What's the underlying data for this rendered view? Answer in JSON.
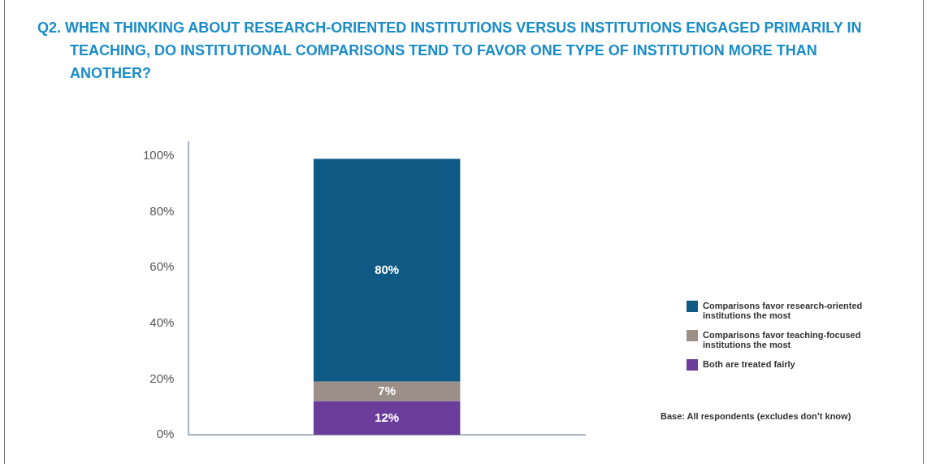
{
  "chart_data": {
    "type": "bar",
    "stacked": true,
    "title": "Q2. WHEN THINKING ABOUT RESEARCH-ORIENTED INSTITUTIONS VERSUS INSTITUTIONS ENGAGED PRIMARILY IN TEACHING, DO INSTITUTIONAL COMPARISONS TEND TO FAVOR ONE TYPE OF INSTITUTION MORE THAN ANOTHER?",
    "categories": [
      null
    ],
    "series": [
      {
        "name": "Both are treated fairly",
        "color": "#6a3d9a",
        "values": [
          12
        ],
        "value_labels": [
          "12%"
        ]
      },
      {
        "name": "Comparisons favor teaching-focused institutions the most",
        "color": "#9b8f88",
        "values": [
          7
        ],
        "value_labels": [
          "7%"
        ]
      },
      {
        "name": "Comparisons favor research-oriented institutions the most",
        "color": "#0f5a85",
        "values": [
          80
        ],
        "value_labels": [
          "80%"
        ]
      }
    ],
    "ylim": [
      0,
      105
    ],
    "yticks": [
      {
        "value": 0,
        "label": "0%"
      },
      {
        "value": 20,
        "label": "20%"
      },
      {
        "value": 40,
        "label": "40%"
      },
      {
        "value": 60,
        "label": "60%"
      },
      {
        "value": 80,
        "label": "80%"
      },
      {
        "value": 100,
        "label": "100%"
      }
    ],
    "grid": false,
    "legend": "right",
    "annotations": [
      "Base: All respondents (excludes don’t know)"
    ]
  }
}
